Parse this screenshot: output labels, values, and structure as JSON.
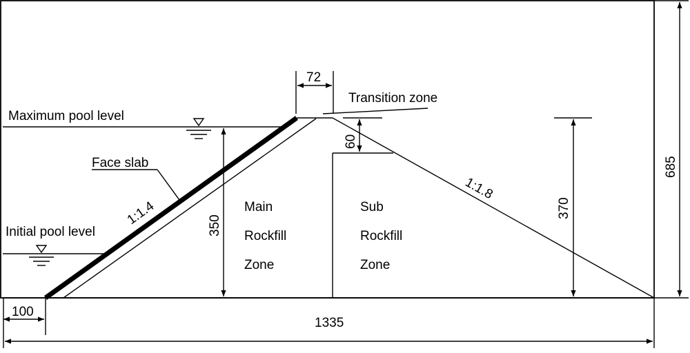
{
  "labels": {
    "maximum_pool_level": "Maximum pool level",
    "initial_pool_level": "Initial pool level",
    "face_slab": "Face slab",
    "transition_zone": "Transition zone",
    "main_zone": [
      "Main",
      "Rockfill",
      "Zone"
    ],
    "sub_zone": [
      "Sub",
      "Rockfill",
      "Zone"
    ],
    "upstream_slope": "1:1.4",
    "downstream_slope": "1:1.8"
  },
  "dimensions": {
    "crest_width": "72",
    "crest_drop": "60",
    "upstream_height": "350",
    "downstream_height": "370",
    "total_height": "685",
    "toe_offset": "100",
    "base_length": "1335"
  }
}
